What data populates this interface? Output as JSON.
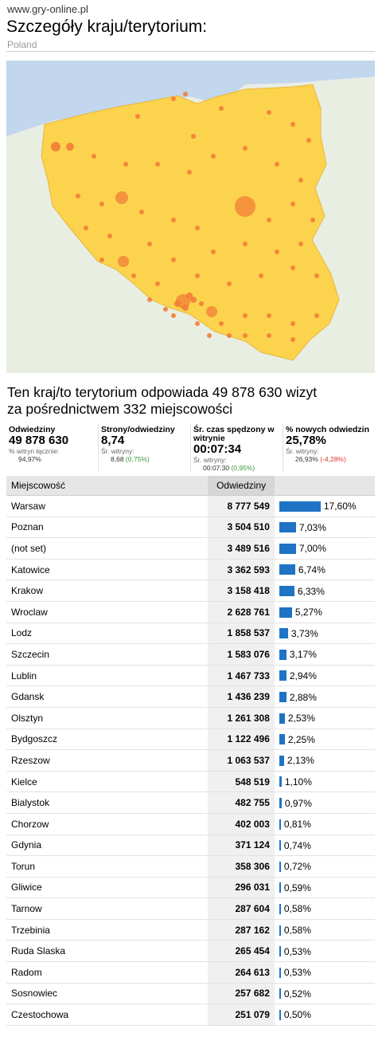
{
  "header": {
    "site": "www.gry-online.pl",
    "title": "Szczegóły kraju/terytorium:",
    "country": "Poland"
  },
  "summary": {
    "line1": "Ten kraj/to terytorium odpowiada 49 878 630 wizyt",
    "line2": "za pośrednictwem 332 miejscowości"
  },
  "metrics": [
    {
      "label": "Odwiedziny",
      "value": "49 878 630",
      "sub_label": "% witryn łącznie:",
      "sub_value": "94,97%",
      "delta": "",
      "delta_dir": ""
    },
    {
      "label": "Strony/odwiedziny",
      "value": "8,74",
      "sub_label": "Śr. witryny:",
      "sub_value": "8,68",
      "delta": "(0,75%)",
      "delta_dir": "pos"
    },
    {
      "label": "Śr. czas spędzony w witrynie",
      "value": "00:07:34",
      "sub_label": "Śr. witryny:",
      "sub_value": "00:07:30",
      "delta": "(0,95%)",
      "delta_dir": "pos"
    },
    {
      "label": "% nowych odwiedzin",
      "value": "25,78%",
      "sub_label": "Śr. witryny:",
      "sub_value": "26,93%",
      "delta": "(-4,28%)",
      "delta_dir": "neg"
    }
  ],
  "table": {
    "headers": {
      "city": "Miejscowość",
      "visits": "Odwiedziny"
    },
    "rows": [
      {
        "city": "Warsaw",
        "visits": "8 777 549",
        "pct": "17,60%",
        "share": 17.6
      },
      {
        "city": "Poznan",
        "visits": "3 504 510",
        "pct": "7,03%",
        "share": 7.03
      },
      {
        "city": "(not set)",
        "visits": "3 489 516",
        "pct": "7,00%",
        "share": 7.0
      },
      {
        "city": "Katowice",
        "visits": "3 362 593",
        "pct": "6,74%",
        "share": 6.74
      },
      {
        "city": "Krakow",
        "visits": "3 158 418",
        "pct": "6,33%",
        "share": 6.33
      },
      {
        "city": "Wroclaw",
        "visits": "2 628 761",
        "pct": "5,27%",
        "share": 5.27
      },
      {
        "city": "Lodz",
        "visits": "1 858 537",
        "pct": "3,73%",
        "share": 3.73
      },
      {
        "city": "Szczecin",
        "visits": "1 583 076",
        "pct": "3,17%",
        "share": 3.17
      },
      {
        "city": "Lublin",
        "visits": "1 467 733",
        "pct": "2,94%",
        "share": 2.94
      },
      {
        "city": "Gdansk",
        "visits": "1 436 239",
        "pct": "2,88%",
        "share": 2.88
      },
      {
        "city": "Olsztyn",
        "visits": "1 261 308",
        "pct": "2,53%",
        "share": 2.53
      },
      {
        "city": "Bydgoszcz",
        "visits": "1 122 496",
        "pct": "2,25%",
        "share": 2.25
      },
      {
        "city": "Rzeszow",
        "visits": "1 063 537",
        "pct": "2,13%",
        "share": 2.13
      },
      {
        "city": "Kielce",
        "visits": "548 519",
        "pct": "1,10%",
        "share": 1.1
      },
      {
        "city": "Bialystok",
        "visits": "482 755",
        "pct": "0,97%",
        "share": 0.97
      },
      {
        "city": "Chorzow",
        "visits": "402 003",
        "pct": "0,81%",
        "share": 0.81
      },
      {
        "city": "Gdynia",
        "visits": "371 124",
        "pct": "0,74%",
        "share": 0.74
      },
      {
        "city": "Torun",
        "visits": "358 306",
        "pct": "0,72%",
        "share": 0.72
      },
      {
        "city": "Gliwice",
        "visits": "296 031",
        "pct": "0,59%",
        "share": 0.59
      },
      {
        "city": "Tarnow",
        "visits": "287 604",
        "pct": "0,58%",
        "share": 0.58
      },
      {
        "city": "Trzebinia",
        "visits": "287 162",
        "pct": "0,58%",
        "share": 0.58
      },
      {
        "city": "Ruda Slaska",
        "visits": "265 454",
        "pct": "0,53%",
        "share": 0.53
      },
      {
        "city": "Radom",
        "visits": "264 613",
        "pct": "0,53%",
        "share": 0.53
      },
      {
        "city": "Sosnowiec",
        "visits": "257 682",
        "pct": "0,52%",
        "share": 0.52
      },
      {
        "city": "Czestochowa",
        "visits": "251 079",
        "pct": "0,50%",
        "share": 0.5
      }
    ]
  },
  "colors": {
    "land": "#fcd34d",
    "country": "#f6d048",
    "water": "#c2d6ee",
    "marker": "#f27d36",
    "bar": "#1f73c4"
  }
}
